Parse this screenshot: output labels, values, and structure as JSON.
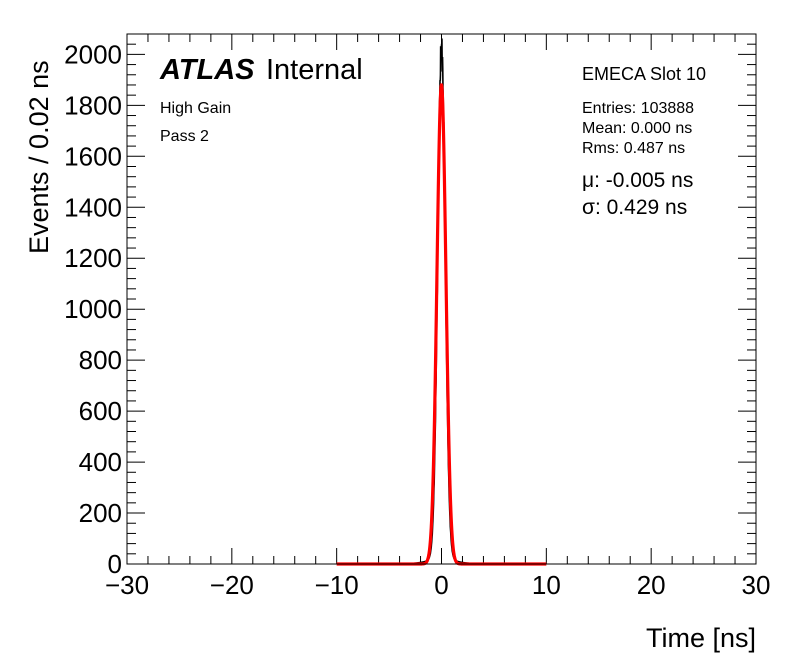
{
  "chart_data": {
    "type": "line",
    "title": "EMECA Slot 10",
    "xlabel": "Time [ns]",
    "ylabel": "Events / 0.02 ns",
    "xlim": [
      -30,
      30
    ],
    "ylim": [
      0,
      2080
    ],
    "x_ticks": [
      -30,
      -20,
      -10,
      0,
      10,
      20,
      30
    ],
    "x_tick_labels": [
      "−30",
      "−20",
      "−10",
      "0",
      "10",
      "20",
      "30"
    ],
    "y_ticks": [
      0,
      200,
      400,
      600,
      800,
      1000,
      1200,
      1400,
      1600,
      1800,
      2000
    ],
    "y_tick_labels": [
      "0",
      "200",
      "400",
      "600",
      "800",
      "1000",
      "1200",
      "1400",
      "1600",
      "1800",
      "2000"
    ],
    "series": [
      {
        "name": "data",
        "color": "#000000",
        "kind": "histogram",
        "bin_width": 0.02,
        "peak": 1980,
        "mean": 0.0,
        "sigma_core": 0.36
      },
      {
        "name": "gaussian fit",
        "color": "#ff0000",
        "kind": "fit",
        "range": [
          -10,
          10
        ],
        "amplitude": 1880,
        "mu": -0.005,
        "sigma": 0.429
      }
    ],
    "labels": {
      "atlas": "ATLAS",
      "internal": "Internal",
      "gain": "High Gain",
      "pass": "Pass 2"
    },
    "stats": {
      "entries": "Entries: 103888",
      "mean": "Mean: 0.000 ns",
      "rms": "Rms: 0.487 ns"
    },
    "fit_results": {
      "mu": "μ: -0.005 ns",
      "sigma": "σ: 0.429 ns"
    }
  }
}
